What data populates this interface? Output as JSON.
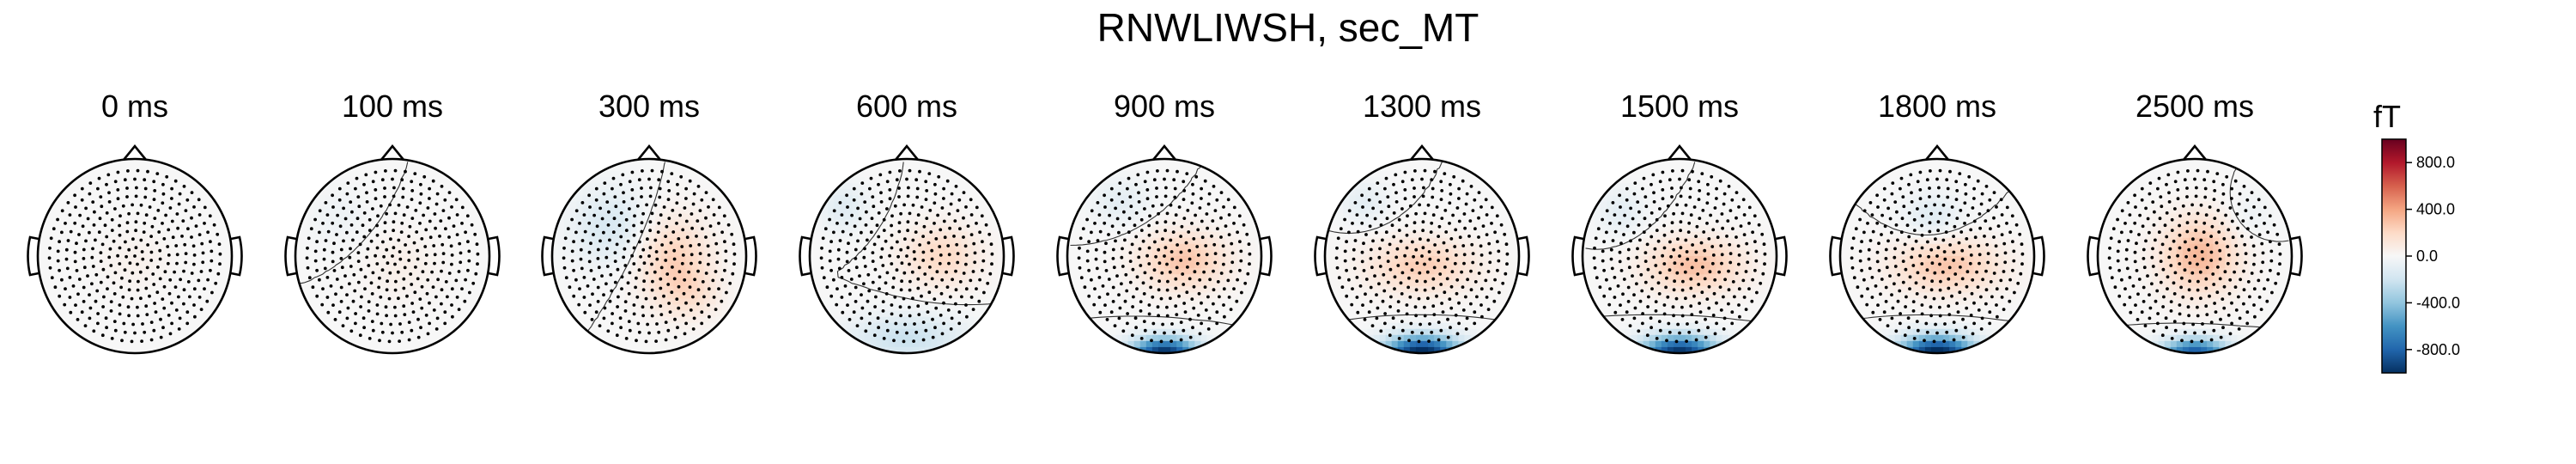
{
  "chart_data": {
    "type": "topomap",
    "title": "RNWLIWSH, sec_MT",
    "panels": [
      {
        "label": "0 ms",
        "time_ms": 0,
        "min_fT": -110,
        "max_fT": 90,
        "blobs": [
          {
            "cx": 0.0,
            "cy": 0.05,
            "sx": 0.35,
            "sy": 0.3,
            "amp": 0.05
          }
        ]
      },
      {
        "label": "100 ms",
        "time_ms": 100,
        "min_fT": -140,
        "max_fT": 110,
        "blobs": [
          {
            "cx": 0.1,
            "cy": 0.1,
            "sx": 0.4,
            "sy": 0.35,
            "amp": 0.06
          },
          {
            "cx": -0.55,
            "cy": -0.4,
            "sx": 0.3,
            "sy": 0.3,
            "amp": -0.05
          }
        ]
      },
      {
        "label": "300 ms",
        "time_ms": 300,
        "min_fT": -220,
        "max_fT": 230,
        "blobs": [
          {
            "cx": 0.25,
            "cy": 0.05,
            "sx": 0.38,
            "sy": 0.45,
            "amp": 0.24
          },
          {
            "cx": -0.4,
            "cy": -0.3,
            "sx": 0.4,
            "sy": 0.4,
            "amp": -0.16
          },
          {
            "cx": 0.45,
            "cy": 0.4,
            "sx": 0.3,
            "sy": 0.25,
            "amp": 0.1
          }
        ]
      },
      {
        "label": "600 ms",
        "time_ms": 600,
        "min_fT": -300,
        "max_fT": 210,
        "blobs": [
          {
            "cx": 0.35,
            "cy": 0.0,
            "sx": 0.4,
            "sy": 0.32,
            "amp": 0.2
          },
          {
            "cx": 0.0,
            "cy": 0.85,
            "sx": 0.6,
            "sy": 0.25,
            "amp": -0.22
          },
          {
            "cx": -0.65,
            "cy": -0.5,
            "sx": 0.25,
            "sy": 0.25,
            "amp": -0.12
          }
        ]
      },
      {
        "label": "900 ms",
        "time_ms": 900,
        "min_fT": -900,
        "max_fT": 300,
        "blobs": [
          {
            "cx": 0.2,
            "cy": 0.05,
            "sx": 0.45,
            "sy": 0.3,
            "amp": 0.28
          },
          {
            "cx": 0.0,
            "cy": 1.0,
            "sx": 0.35,
            "sy": 0.16,
            "amp": -1.0
          },
          {
            "cx": -0.45,
            "cy": -0.55,
            "sx": 0.3,
            "sy": 0.25,
            "amp": -0.1
          }
        ]
      },
      {
        "label": "1300 ms",
        "time_ms": 1300,
        "min_fT": -1000,
        "max_fT": 280,
        "blobs": [
          {
            "cx": 0.0,
            "cy": 0.1,
            "sx": 0.55,
            "sy": 0.28,
            "amp": 0.25
          },
          {
            "cx": 0.0,
            "cy": 1.0,
            "sx": 0.4,
            "sy": 0.18,
            "amp": -1.05
          },
          {
            "cx": -0.6,
            "cy": -0.55,
            "sx": 0.25,
            "sy": 0.22,
            "amp": -0.1
          }
        ]
      },
      {
        "label": "1500 ms",
        "time_ms": 1500,
        "min_fT": -950,
        "max_fT": 320,
        "blobs": [
          {
            "cx": 0.15,
            "cy": 0.1,
            "sx": 0.5,
            "sy": 0.28,
            "amp": 0.3
          },
          {
            "cx": 0.0,
            "cy": 1.0,
            "sx": 0.4,
            "sy": 0.18,
            "amp": -1.0
          },
          {
            "cx": -0.6,
            "cy": -0.45,
            "sx": 0.25,
            "sy": 0.25,
            "amp": -0.1
          }
        ]
      },
      {
        "label": "1800 ms",
        "time_ms": 1800,
        "min_fT": -980,
        "max_fT": 300,
        "blobs": [
          {
            "cx": 0.1,
            "cy": 0.1,
            "sx": 0.55,
            "sy": 0.28,
            "amp": 0.28
          },
          {
            "cx": 0.0,
            "cy": 1.0,
            "sx": 0.4,
            "sy": 0.18,
            "amp": -1.05
          },
          {
            "cx": -0.05,
            "cy": -0.4,
            "sx": 0.3,
            "sy": 0.25,
            "amp": -0.12
          }
        ]
      },
      {
        "label": "2500 ms",
        "time_ms": 2500,
        "min_fT": -850,
        "max_fT": 350,
        "blobs": [
          {
            "cx": 0.05,
            "cy": 0.0,
            "sx": 0.4,
            "sy": 0.4,
            "amp": 0.33
          },
          {
            "cx": 0.0,
            "cy": 1.0,
            "sx": 0.35,
            "sy": 0.15,
            "amp": -0.85
          },
          {
            "cx": 0.55,
            "cy": -0.4,
            "sx": 0.25,
            "sy": 0.25,
            "amp": -0.06
          }
        ]
      }
    ],
    "colorbar": {
      "label": "fT",
      "colormap": "RdBu_r",
      "range": [
        -1000,
        1000
      ],
      "ticks": [
        800,
        400,
        0,
        -400,
        -800
      ],
      "tick_labels": [
        "800.0",
        "400.0",
        "0.0",
        "-400.0",
        "-800.0"
      ]
    },
    "sensor_marker": "small black dots",
    "contour_level": "0.0 (thin line)"
  }
}
